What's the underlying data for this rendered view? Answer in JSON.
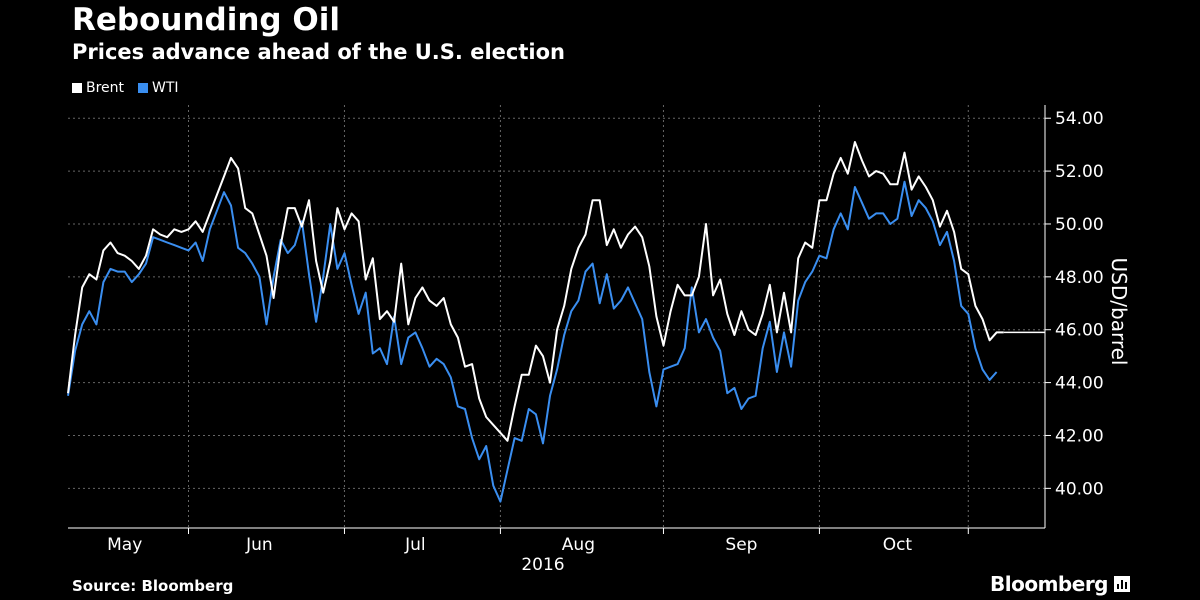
{
  "header": {
    "title": "Rebounding Oil",
    "subtitle": "Prices advance ahead of the U.S. election"
  },
  "footer": {
    "source": "Source: Bloomberg",
    "brand": "Bloomberg"
  },
  "colors": {
    "background": "#000000",
    "brent": "#ffffff",
    "wti": "#3a8ef0",
    "grid": "#666666"
  },
  "chart_data": {
    "type": "line",
    "title": "Rebounding Oil",
    "subtitle": "Prices advance ahead of the U.S. election",
    "ylabel": "USD/barrel",
    "xlabel": "2016",
    "ylim": [
      38.5,
      54.5
    ],
    "y_ticks": [
      40,
      42,
      44,
      46,
      48,
      50,
      52,
      54
    ],
    "y_tick_labels": [
      "40.00",
      "42.00",
      "44.00",
      "46.00",
      "48.00",
      "50.00",
      "52.00",
      "54.00"
    ],
    "x_unit": "trading day index from May 2",
    "x_range": [
      0,
      135
    ],
    "x_month_labels": [
      {
        "label": "May",
        "x": 8
      },
      {
        "label": "Jun",
        "x": 27
      },
      {
        "label": "Jul",
        "x": 49
      },
      {
        "label": "Aug",
        "x": 72
      },
      {
        "label": "Sep",
        "x": 95
      },
      {
        "label": "Oct",
        "x": 117
      }
    ],
    "x_month_boundaries": [
      17,
      39,
      61,
      84,
      106,
      127
    ],
    "x_year_label": {
      "label": "2016",
      "x": 67
    },
    "grid": true,
    "legend_position": "top-left",
    "right_axis": true,
    "series": [
      {
        "name": "Brent",
        "color": "#ffffff",
        "values": [
          43.6,
          45.8,
          47.6,
          48.1,
          47.9,
          49.0,
          49.3,
          48.9,
          48.8,
          48.6,
          48.3,
          48.8,
          49.8,
          49.6,
          49.5,
          49.8,
          49.7,
          49.8,
          50.1,
          49.7,
          50.4,
          51.1,
          51.8,
          52.5,
          52.1,
          50.6,
          50.4,
          49.6,
          48.8,
          47.2,
          49.2,
          50.6,
          50.6,
          49.9,
          50.9,
          48.6,
          47.4,
          48.6,
          50.6,
          49.8,
          50.4,
          50.1,
          47.9,
          48.7,
          46.4,
          46.7,
          46.3,
          48.5,
          46.2,
          47.2,
          47.6,
          47.1,
          46.9,
          47.2,
          46.2,
          45.7,
          44.6,
          44.7,
          43.4,
          42.7,
          42.4,
          42.1,
          41.8,
          43.1,
          44.3,
          44.3,
          45.4,
          45.0,
          44.0,
          46.0,
          46.9,
          48.3,
          49.1,
          49.6,
          50.9,
          50.9,
          49.2,
          49.8,
          49.1,
          49.6,
          49.9,
          49.5,
          48.4,
          46.5,
          45.4,
          46.7,
          47.7,
          47.3,
          47.3,
          48.0,
          50.0,
          47.3,
          47.9,
          46.6,
          45.8,
          46.7,
          46.0,
          45.8,
          46.6,
          47.7,
          45.9,
          47.4,
          45.9,
          48.7,
          49.3,
          49.1,
          50.9,
          50.9,
          51.9,
          52.5,
          51.9,
          53.1,
          52.4,
          51.8,
          52.0,
          51.9,
          51.5,
          51.5,
          52.7,
          51.3,
          51.8,
          51.4,
          50.9,
          49.9,
          50.5,
          49.7,
          48.3,
          48.1,
          46.9,
          46.4,
          45.6,
          45.9,
          45.9
        ]
      },
      {
        "name": "WTI",
        "color": "#3a8ef0",
        "values": [
          43.5,
          45.2,
          46.2,
          46.7,
          46.2,
          47.8,
          48.3,
          48.2,
          48.2,
          47.8,
          48.1,
          48.5,
          49.5,
          49.4,
          49.3,
          49.2,
          49.1,
          49.0,
          49.3,
          48.6,
          49.8,
          50.5,
          51.2,
          50.7,
          49.1,
          48.9,
          48.5,
          48.0,
          46.2,
          48.0,
          49.4,
          48.9,
          49.2,
          50.1,
          48.1,
          46.3,
          48.0,
          50.0,
          48.3,
          48.9,
          47.7,
          46.6,
          47.4,
          45.1,
          45.3,
          44.7,
          46.5,
          44.7,
          45.7,
          45.9,
          45.3,
          44.6,
          44.9,
          44.7,
          44.2,
          43.1,
          43.0,
          41.9,
          41.1,
          41.6,
          40.1,
          39.5,
          40.7,
          41.9,
          41.8,
          43.0,
          42.8,
          41.7,
          43.5,
          44.5,
          45.8,
          46.7,
          47.1,
          48.2,
          48.5,
          47.0,
          48.1,
          46.8,
          47.1,
          47.6,
          47.0,
          46.4,
          44.4,
          43.1,
          44.5,
          44.6,
          44.7,
          45.3,
          47.6,
          45.9,
          46.4,
          45.7,
          45.2,
          43.6,
          43.8,
          43.0,
          43.4,
          43.5,
          45.3,
          46.3,
          44.4,
          45.9,
          44.6,
          47.1,
          47.8,
          48.2,
          48.8,
          48.7,
          49.8,
          50.4,
          49.8,
          51.4,
          50.8,
          50.2,
          50.4,
          50.4,
          50.0,
          50.2,
          51.6,
          50.3,
          50.9,
          50.6,
          50.1,
          49.2,
          49.7,
          48.6,
          46.9,
          46.6,
          45.3,
          44.5,
          44.1,
          44.4
        ]
      }
    ]
  }
}
